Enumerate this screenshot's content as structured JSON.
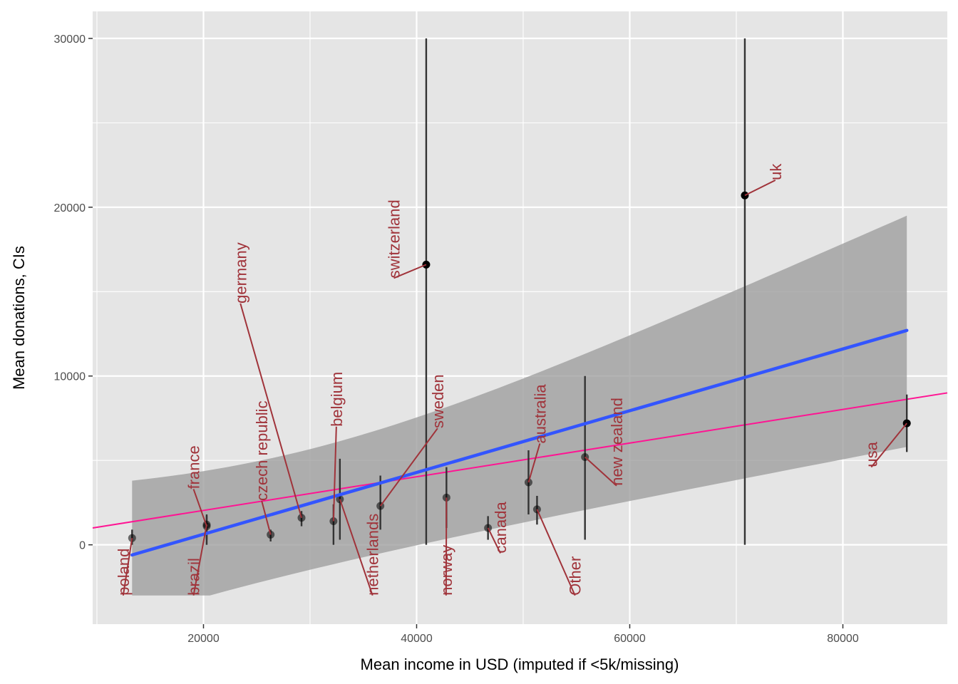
{
  "chart_data": {
    "type": "scatter",
    "xlabel": "Mean income in USD (imputed if <5k/missing)",
    "ylabel": "Mean donations, CIs",
    "xlim": [
      9600,
      89800
    ],
    "ylim": [
      -4700,
      31600
    ],
    "x_ticks": [
      20000,
      40000,
      60000,
      80000
    ],
    "y_ticks": [
      0,
      10000,
      20000,
      30000
    ],
    "x_tick_labels": [
      "20000",
      "40000",
      "60000",
      "80000"
    ],
    "y_tick_labels": [
      "0",
      "10000",
      "20000",
      "30000"
    ],
    "grid": true,
    "points": [
      {
        "label": "poland",
        "x": 13300,
        "y": 400,
        "lo": 0,
        "hi": 900,
        "lx": 13000,
        "ly": -3000,
        "ha": 0
      },
      {
        "label": "brazil",
        "x": 20300,
        "y": 1200,
        "lo": 0,
        "hi": 1800,
        "lx": 19600,
        "ly": -3000,
        "ha": 0
      },
      {
        "label": "france",
        "x": 20300,
        "y": 1100,
        "lo": 300,
        "hi": 1700,
        "lx": 19600,
        "ly": 3300,
        "ha": 1
      },
      {
        "label": "czech republic",
        "x": 26300,
        "y": 600,
        "lo": 200,
        "hi": 900,
        "lx": 26000,
        "ly": 2600,
        "ha": 1
      },
      {
        "label": "germany",
        "x": 29200,
        "y": 1600,
        "lo": 1100,
        "hi": 2000,
        "lx": 24000,
        "ly": 14300,
        "ha": 1
      },
      {
        "label": "belgium",
        "x": 32200,
        "y": 1400,
        "lo": 0,
        "hi": 2400,
        "lx": 33000,
        "ly": 7000,
        "ha": 1
      },
      {
        "label": "netherlands",
        "x": 32800,
        "y": 2700,
        "lo": 300,
        "hi": 5100,
        "lx": 36400,
        "ly": -3000,
        "ha": 0
      },
      {
        "label": "sweden",
        "x": 36600,
        "y": 2300,
        "lo": 900,
        "hi": 4100,
        "lx": 42500,
        "ly": 6900,
        "ha": 1
      },
      {
        "label": "norway",
        "x": 42800,
        "y": 2800,
        "lo": 1000,
        "hi": 4600,
        "lx": 43300,
        "ly": -3000,
        "ha": 0
      },
      {
        "label": "switzerland",
        "x": 40900,
        "y": 16600,
        "lo": 0,
        "hi": 30000,
        "lx": 38400,
        "ly": 15800,
        "ha": 1
      },
      {
        "label": "canada",
        "x": 46700,
        "y": 1000,
        "lo": 300,
        "hi": 1700,
        "lx": 48400,
        "ly": -500,
        "ha": 0
      },
      {
        "label": "australia",
        "x": 50500,
        "y": 3700,
        "lo": 1800,
        "hi": 5600,
        "lx": 52100,
        "ly": 6000,
        "ha": 1
      },
      {
        "label": "Other",
        "x": 51300,
        "y": 2100,
        "lo": 1200,
        "hi": 2900,
        "lx": 55400,
        "ly": -3000,
        "ha": 0
      },
      {
        "label": "new zealand",
        "x": 55800,
        "y": 5200,
        "lo": 300,
        "hi": 10000,
        "lx": 59300,
        "ly": 3500,
        "ha": 1
      },
      {
        "label": "uk",
        "x": 70800,
        "y": 20700,
        "lo": 0,
        "hi": 30000,
        "lx": 74200,
        "ly": 21600,
        "ha": 1
      },
      {
        "label": "usa",
        "x": 86000,
        "y": 7200,
        "lo": 5500,
        "hi": 8900,
        "lx": 83200,
        "ly": 4600,
        "ha": 1
      }
    ],
    "fit_line": {
      "color": "#3355FF",
      "x": [
        13300,
        86000
      ],
      "y": [
        -600,
        12700
      ],
      "band_upper": [
        3800,
        19500
      ],
      "band_lower": [
        -3000,
        5800
      ]
    },
    "reference_line": {
      "color": "#FF1493",
      "x": [
        9600,
        89800
      ],
      "y": [
        1000,
        9000
      ]
    },
    "colors": {
      "panel_bg": "#E5E5E5",
      "grid": "#FFFFFF",
      "point": "#000000",
      "label": "#A0333A",
      "ribbon": "#999999"
    }
  }
}
